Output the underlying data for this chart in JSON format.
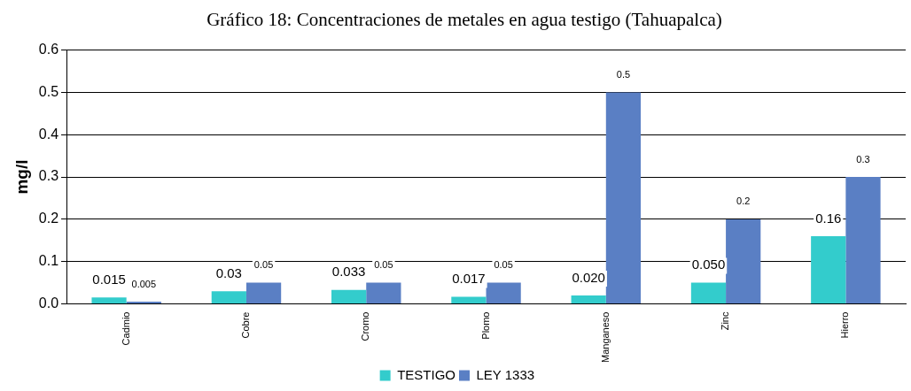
{
  "chart_data": {
    "type": "bar",
    "title": "Gráfico  18: Concentraciones de metales en agua testigo (Tahuapalca)",
    "ylabel": "mg/l",
    "categories": [
      "Cadmio",
      "Cobre",
      "Cromo",
      "Plomo",
      "Manganeso",
      "Zinc",
      "Hierro"
    ],
    "series": [
      {
        "name": "TESTIGO",
        "color": "#33cccc",
        "values": [
          0.015,
          0.03,
          0.033,
          0.017,
          0.02,
          0.05,
          0.16
        ],
        "value_labels": [
          "0.015",
          "0.03",
          "0.033",
          "0.017",
          "0.020",
          "0.050",
          "0.16"
        ]
      },
      {
        "name": "LEY 1333",
        "color": "#5a7fc4",
        "values": [
          0.005,
          0.05,
          0.05,
          0.05,
          0.5,
          0.2,
          0.3
        ],
        "value_labels": [
          "0.005",
          "0.05",
          "0.05",
          "0.05",
          "0.5",
          "0.2",
          "0.3"
        ]
      }
    ],
    "ylim": [
      0,
      0.6
    ],
    "yticks": [
      {
        "value": 0,
        "label": "0.0"
      },
      {
        "value": 0.1,
        "label": "0.1"
      },
      {
        "value": 0.2,
        "label": "0.2"
      },
      {
        "value": 0.3,
        "label": "0.3"
      },
      {
        "value": 0.4,
        "label": "0.4"
      },
      {
        "value": 0.5,
        "label": "0.5"
      },
      {
        "value": 0.6,
        "label": "0.6"
      }
    ],
    "grid": "y",
    "legend": "bottom"
  }
}
